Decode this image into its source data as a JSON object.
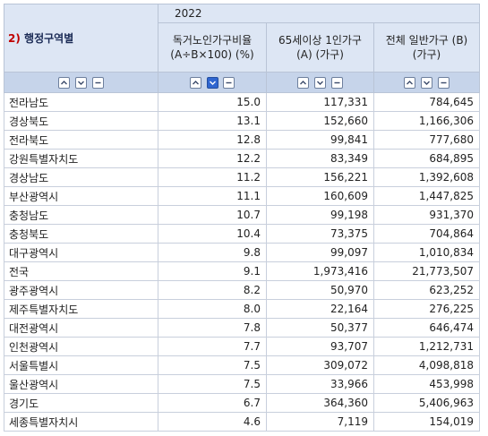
{
  "header": {
    "corner_num": "2)",
    "corner_label": "행정구역별",
    "year": "2022",
    "columns": [
      "독거노인가구비율 (A÷B×100) (%)",
      "65세이상 1인가구 (A) (가구)",
      "전체 일반가구 (B) (가구)"
    ]
  },
  "controls": {
    "up_icon": "chevron-up-icon",
    "down_icon": "chevron-down-icon",
    "minus_icon": "minus-icon"
  },
  "colors": {
    "header_bg": "#dde6f4",
    "control_bg": "#c6d4ea",
    "active_button": "#2f66d0",
    "corner_text": "#1a2a55",
    "corner_num": "#c00000"
  },
  "rows": [
    [
      "전라남도",
      "15.0",
      "117,331",
      "784,645"
    ],
    [
      "경상북도",
      "13.1",
      "152,660",
      "1,166,306"
    ],
    [
      "전라북도",
      "12.8",
      "99,841",
      "777,680"
    ],
    [
      "강원특별자치도",
      "12.2",
      "83,349",
      "684,895"
    ],
    [
      "경상남도",
      "11.2",
      "156,221",
      "1,392,608"
    ],
    [
      "부산광역시",
      "11.1",
      "160,609",
      "1,447,825"
    ],
    [
      "충청남도",
      "10.7",
      "99,198",
      "931,370"
    ],
    [
      "충청북도",
      "10.4",
      "73,375",
      "704,864"
    ],
    [
      "대구광역시",
      "9.8",
      "99,097",
      "1,010,834"
    ],
    [
      "전국",
      "9.1",
      "1,973,416",
      "21,773,507"
    ],
    [
      "광주광역시",
      "8.2",
      "50,970",
      "623,252"
    ],
    [
      "제주특별자치도",
      "8.0",
      "22,164",
      "276,225"
    ],
    [
      "대전광역시",
      "7.8",
      "50,377",
      "646,474"
    ],
    [
      "인천광역시",
      "7.7",
      "93,707",
      "1,212,731"
    ],
    [
      "서울특별시",
      "7.5",
      "309,072",
      "4,098,818"
    ],
    [
      "울산광역시",
      "7.5",
      "33,966",
      "453,998"
    ],
    [
      "경기도",
      "6.7",
      "364,360",
      "5,406,963"
    ],
    [
      "세종특별자치시",
      "4.6",
      "7,119",
      "154,019"
    ]
  ]
}
